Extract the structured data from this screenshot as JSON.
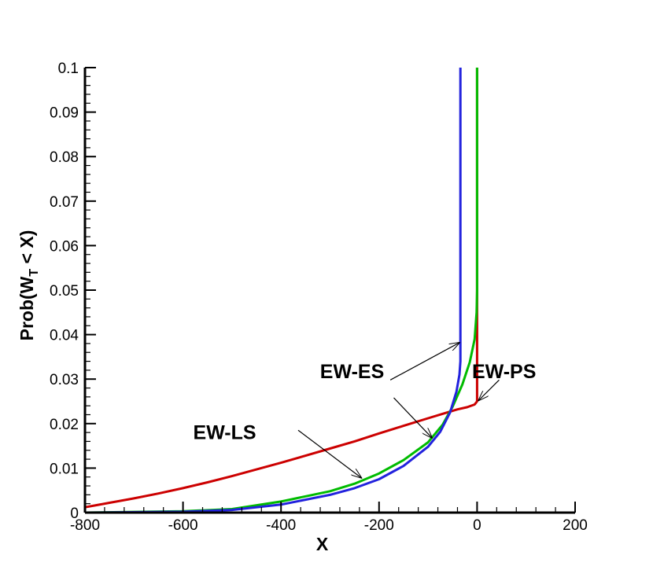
{
  "chart_data": {
    "type": "line",
    "xlabel": "X",
    "ylabel_parts": {
      "pre": "Prob(W",
      "sub": "T",
      "post": " < X)"
    },
    "xlim": [
      -800,
      200
    ],
    "ylim": [
      0,
      0.1
    ],
    "xticks": [
      -800,
      -600,
      -400,
      -200,
      0,
      200
    ],
    "xtick_labels": [
      "-800",
      "-600",
      "-400",
      "-200",
      "0",
      "200"
    ],
    "yticks": [
      0,
      0.01,
      0.02,
      0.03,
      0.04,
      0.05,
      0.06,
      0.07,
      0.08,
      0.09,
      0.1
    ],
    "ytick_labels": [
      "0",
      "0.01",
      "0.02",
      "0.03",
      "0.04",
      "0.05",
      "0.06",
      "0.07",
      "0.08",
      "0.09",
      "0.1"
    ],
    "grid": false,
    "series": [
      {
        "color": "#cc0000",
        "points": [
          [
            -800,
            0.0012
          ],
          [
            -750,
            0.0022
          ],
          [
            -700,
            0.0032
          ],
          [
            -650,
            0.0043
          ],
          [
            -600,
            0.0055
          ],
          [
            -550,
            0.0068
          ],
          [
            -500,
            0.0082
          ],
          [
            -450,
            0.0097
          ],
          [
            -400,
            0.0112
          ],
          [
            -350,
            0.0128
          ],
          [
            -300,
            0.0144
          ],
          [
            -250,
            0.016
          ],
          [
            -200,
            0.0178
          ],
          [
            -150,
            0.0195
          ],
          [
            -100,
            0.0212
          ],
          [
            -70,
            0.0222
          ],
          [
            -40,
            0.0232
          ],
          [
            -20,
            0.0237
          ],
          [
            -5,
            0.0243
          ],
          [
            0,
            0.025
          ],
          [
            0,
            0.1
          ]
        ]
      },
      {
        "color": "#00bb00",
        "points": [
          [
            -800,
            0.0
          ],
          [
            -600,
            0.0003
          ],
          [
            -500,
            0.0008
          ],
          [
            -400,
            0.0025
          ],
          [
            -300,
            0.0048
          ],
          [
            -250,
            0.0065
          ],
          [
            -200,
            0.0088
          ],
          [
            -150,
            0.0118
          ],
          [
            -100,
            0.0158
          ],
          [
            -70,
            0.0198
          ],
          [
            -50,
            0.0238
          ],
          [
            -30,
            0.0288
          ],
          [
            -15,
            0.0338
          ],
          [
            -5,
            0.039
          ],
          [
            -1,
            0.045
          ],
          [
            0,
            0.05
          ],
          [
            0,
            0.1
          ]
        ]
      },
      {
        "color": "#2222dd",
        "points": [
          [
            -800,
            0.0
          ],
          [
            -600,
            0.0002
          ],
          [
            -500,
            0.0006
          ],
          [
            -400,
            0.0018
          ],
          [
            -300,
            0.004
          ],
          [
            -250,
            0.0055
          ],
          [
            -200,
            0.0075
          ],
          [
            -150,
            0.0105
          ],
          [
            -100,
            0.0148
          ],
          [
            -75,
            0.0182
          ],
          [
            -55,
            0.0225
          ],
          [
            -42,
            0.0272
          ],
          [
            -36,
            0.031
          ],
          [
            -34,
            0.034
          ],
          [
            -34,
            0.1
          ]
        ]
      }
    ],
    "annotations": [
      {
        "text": "EW-ES",
        "tx": -255,
        "ty": 0.0302,
        "ax1": -177,
        "ay1": 0.0298,
        "ax2": -36,
        "ay2": 0.0382
      },
      {
        "text": "EW-PS",
        "tx": 55,
        "ty": 0.0302,
        "ax1": 45,
        "ay1": 0.0298,
        "ax2": 3,
        "ay2": 0.0252
      },
      {
        "text": "EW-LS",
        "tx": -515,
        "ty": 0.0165,
        "ax1": -365,
        "ay1": 0.0185,
        "ax2": -236,
        "ay2": 0.0078
      },
      {
        "text": "",
        "ax1": -170,
        "ay1": 0.0258,
        "ax2": -92,
        "ay2": 0.0168
      }
    ]
  }
}
